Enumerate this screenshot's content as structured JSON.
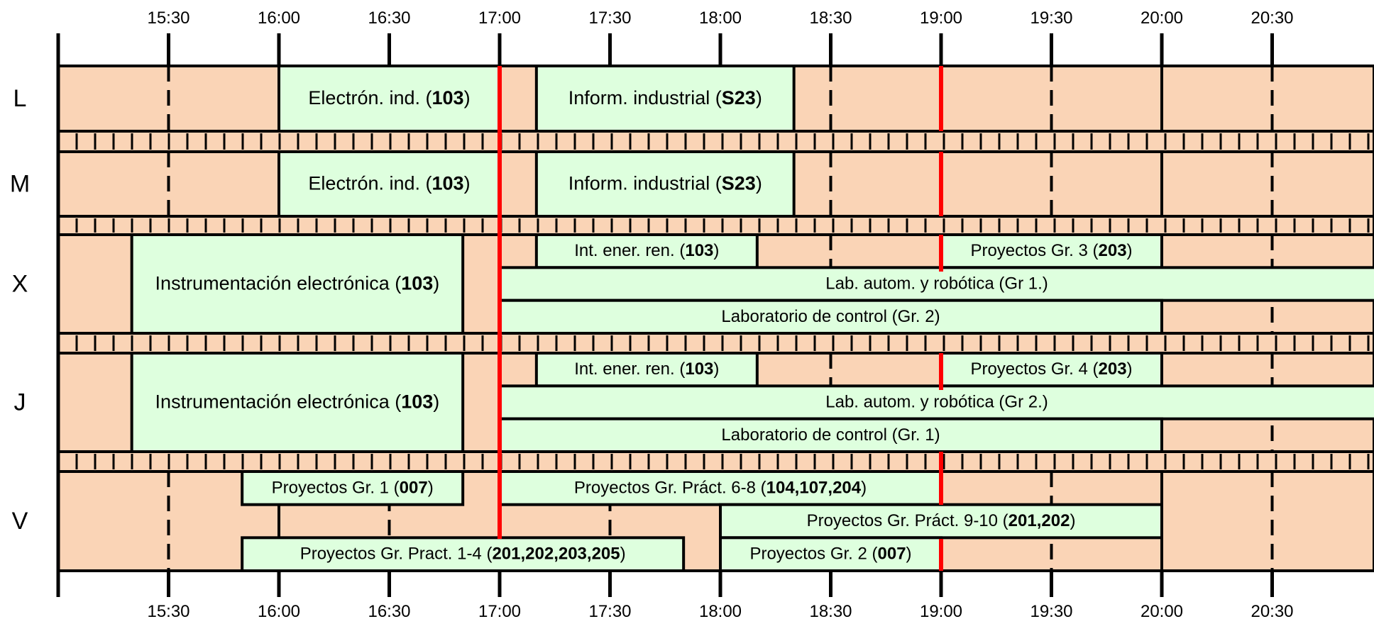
{
  "times": [
    "15:30",
    "16:00",
    "16:30",
    "17:00",
    "17:30",
    "18:00",
    "18:30",
    "19:00",
    "19:30",
    "20:00",
    "20:30"
  ],
  "colors": {
    "free": "#FAD4B6",
    "booked": "#DEFFDE",
    "line": "#000000",
    "marker": "#FF0000"
  },
  "days": [
    {
      "label": "L",
      "events": [
        {
          "parts": [
            {
              "t": "Electrón. ind. ("
            },
            {
              "t": "103",
              "b": true
            },
            {
              "t": ")"
            }
          ],
          "start": "16:00",
          "end": "17:00",
          "lane": 0,
          "lanes": 1
        },
        {
          "parts": [
            {
              "t": "Inform. industrial ("
            },
            {
              "t": "S23",
              "b": true
            },
            {
              "t": ")"
            }
          ],
          "start": "17:10",
          "end": "18:20",
          "lane": 0,
          "lanes": 1
        }
      ]
    },
    {
      "label": "M",
      "events": [
        {
          "parts": [
            {
              "t": "Electrón. ind. ("
            },
            {
              "t": "103",
              "b": true
            },
            {
              "t": ")"
            }
          ],
          "start": "16:00",
          "end": "17:00",
          "lane": 0,
          "lanes": 1
        },
        {
          "parts": [
            {
              "t": "Inform. industrial ("
            },
            {
              "t": "S23",
              "b": true
            },
            {
              "t": ")"
            }
          ],
          "start": "17:10",
          "end": "18:20",
          "lane": 0,
          "lanes": 1
        }
      ]
    },
    {
      "label": "X",
      "events": [
        {
          "parts": [
            {
              "t": "Instrumentación electrónica ("
            },
            {
              "t": "103",
              "b": true
            },
            {
              "t": ")"
            }
          ],
          "start": "15:20",
          "end": "16:50",
          "lane": 0,
          "lanes": 3
        },
        {
          "parts": [
            {
              "t": "Int. ener. ren. ("
            },
            {
              "t": "103",
              "b": true
            },
            {
              "t": ")"
            }
          ],
          "start": "17:10",
          "end": "18:10",
          "lane": 0,
          "lanes": 1
        },
        {
          "parts": [
            {
              "t": "Proyectos Gr. 3 ("
            },
            {
              "t": "203",
              "b": true
            },
            {
              "t": ")"
            }
          ],
          "start": "19:00",
          "end": "20:00",
          "lane": 0,
          "lanes": 1
        },
        {
          "parts": [
            {
              "t": "Lab. autom. y robótica (Gr 1.)"
            }
          ],
          "start": "17:00",
          "end": "21:00",
          "lane": 1,
          "lanes": 1
        },
        {
          "parts": [
            {
              "t": "Laboratorio de control (Gr. 2)"
            }
          ],
          "start": "17:00",
          "end": "20:00",
          "lane": 2,
          "lanes": 1
        }
      ]
    },
    {
      "label": "J",
      "events": [
        {
          "parts": [
            {
              "t": "Instrumentación electrónica ("
            },
            {
              "t": "103",
              "b": true
            },
            {
              "t": ")"
            }
          ],
          "start": "15:20",
          "end": "16:50",
          "lane": 0,
          "lanes": 3
        },
        {
          "parts": [
            {
              "t": "Int. ener. ren. ("
            },
            {
              "t": "103",
              "b": true
            },
            {
              "t": ")"
            }
          ],
          "start": "17:10",
          "end": "18:10",
          "lane": 0,
          "lanes": 1
        },
        {
          "parts": [
            {
              "t": "Proyectos Gr. 4 ("
            },
            {
              "t": "203",
              "b": true
            },
            {
              "t": ")"
            }
          ],
          "start": "19:00",
          "end": "20:00",
          "lane": 0,
          "lanes": 1
        },
        {
          "parts": [
            {
              "t": "Lab. autom. y robótica (Gr 2.)"
            }
          ],
          "start": "17:00",
          "end": "21:00",
          "lane": 1,
          "lanes": 1
        },
        {
          "parts": [
            {
              "t": "Laboratorio de control (Gr. 1)"
            }
          ],
          "start": "17:00",
          "end": "20:00",
          "lane": 2,
          "lanes": 1
        }
      ]
    },
    {
      "label": "V",
      "events": [
        {
          "parts": [
            {
              "t": "Proyectos Gr. 1 ("
            },
            {
              "t": "007",
              "b": true
            },
            {
              "t": ")"
            }
          ],
          "start": "15:50",
          "end": "16:50",
          "lane": 0,
          "lanes": 1
        },
        {
          "parts": [
            {
              "t": "Proyectos Gr. Práct. 6-8 ("
            },
            {
              "t": "104,107,204",
              "b": true
            },
            {
              "t": ")"
            }
          ],
          "start": "17:00",
          "end": "19:00",
          "lane": 0,
          "lanes": 1
        },
        {
          "parts": [
            {
              "t": "Proyectos Gr. Práct. 9-10 ("
            },
            {
              "t": "201,202",
              "b": true
            },
            {
              "t": ")"
            }
          ],
          "start": "18:00",
          "end": "20:00",
          "lane": 1,
          "lanes": 1
        },
        {
          "parts": [
            {
              "t": "Proyectos Gr. Pract. 1-4 ("
            },
            {
              "t": "201,202,203,205",
              "b": true
            },
            {
              "t": ")"
            }
          ],
          "start": "15:50",
          "end": "17:50",
          "lane": 2,
          "lanes": 1
        },
        {
          "parts": [
            {
              "t": "Proyectos Gr. 2 ("
            },
            {
              "t": "007",
              "b": true
            },
            {
              "t": ")"
            }
          ],
          "start": "18:00",
          "end": "19:00",
          "lane": 2,
          "lanes": 1
        }
      ]
    }
  ]
}
